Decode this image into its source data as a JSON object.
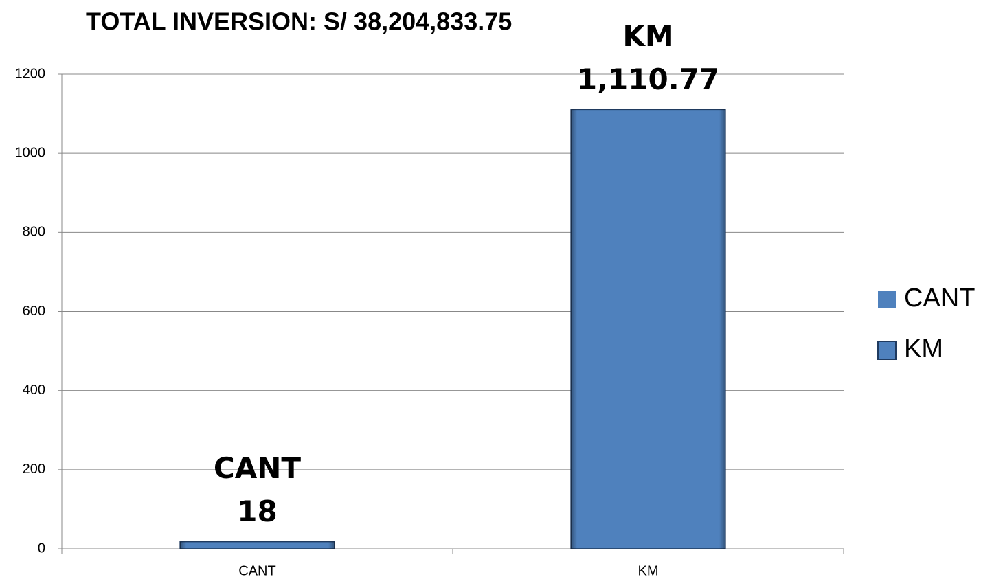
{
  "chart_data": {
    "type": "bar",
    "title": "TOTAL INVERSION: S/ 38,204,833.75",
    "categories": [
      "CANT",
      "KM"
    ],
    "series": [
      {
        "name": "CANT",
        "color": "#4f81bd",
        "values": [
          18,
          null
        ]
      },
      {
        "name": "KM",
        "color": "#4f81bd",
        "values": [
          null,
          1110.77
        ],
        "value_labels": [
          null,
          "1,110.77"
        ]
      }
    ],
    "ylim": [
      0,
      1200
    ],
    "yticks": [
      0,
      200,
      400,
      600,
      800,
      1000,
      1200
    ],
    "grid": true,
    "legend": "right"
  }
}
